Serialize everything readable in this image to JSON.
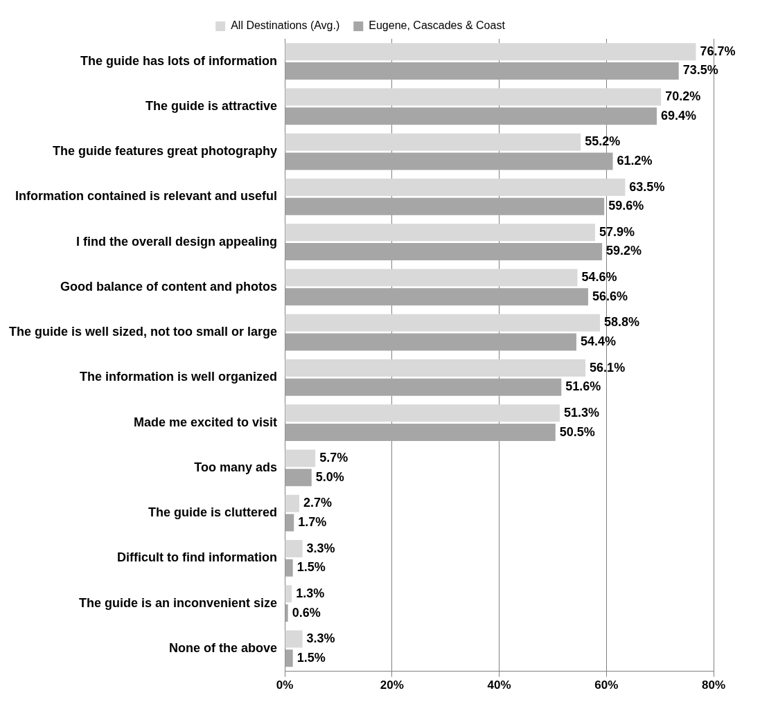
{
  "chart_data": {
    "type": "bar",
    "orientation": "horizontal",
    "categories": [
      "The guide has lots of information",
      "The guide is attractive",
      "The guide features great photography",
      "Information contained is relevant and useful",
      "I find the overall design appealing",
      "Good balance of content and photos",
      "The guide is well sized, not too small or large",
      "The information is well organized",
      "Made me excited to visit",
      "Too many ads",
      "The guide is cluttered",
      "Difficult to find information",
      "The guide is an inconvenient size",
      "None of the above"
    ],
    "series": [
      {
        "name": "All Destinations (Avg.)",
        "color": "#d9d9d9",
        "values": [
          76.7,
          70.2,
          55.2,
          63.5,
          57.9,
          54.6,
          58.8,
          56.1,
          51.3,
          5.7,
          2.7,
          3.3,
          1.3,
          3.3
        ],
        "value_labels": [
          "76.7%",
          "70.2%",
          "55.2%",
          "63.5%",
          "57.9%",
          "54.6%",
          "58.8%",
          "56.1%",
          "51.3%",
          "5.7%",
          "2.7%",
          "3.3%",
          "1.3%",
          "3.3%"
        ]
      },
      {
        "name": "Eugene, Cascades & Coast",
        "color": "#a6a6a6",
        "values": [
          73.5,
          69.4,
          61.2,
          59.6,
          59.2,
          56.6,
          54.4,
          51.6,
          50.5,
          5.0,
          1.7,
          1.5,
          0.6,
          1.5
        ],
        "value_labels": [
          "73.5%",
          "69.4%",
          "61.2%",
          "59.6%",
          "59.2%",
          "56.6%",
          "54.4%",
          "51.6%",
          "50.5%",
          "5.0%",
          "1.7%",
          "1.5%",
          "0.6%",
          "1.5%"
        ]
      }
    ],
    "xlim": [
      0,
      80
    ],
    "xticks": [
      {
        "value": 0,
        "label": "0%"
      },
      {
        "value": 20,
        "label": "20%"
      },
      {
        "value": 40,
        "label": "40%"
      },
      {
        "value": 60,
        "label": "60%"
      },
      {
        "value": 80,
        "label": "80%"
      }
    ],
    "grid": "x",
    "legend": "top"
  }
}
